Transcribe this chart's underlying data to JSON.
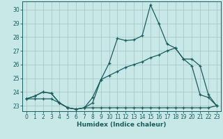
{
  "xlabel": "Humidex (Indice chaleur)",
  "xlim": [
    -0.5,
    23.5
  ],
  "ylim": [
    22.6,
    30.6
  ],
  "yticks": [
    23,
    24,
    25,
    26,
    27,
    28,
    29,
    30
  ],
  "xticks": [
    0,
    1,
    2,
    3,
    4,
    5,
    6,
    7,
    8,
    9,
    10,
    11,
    12,
    13,
    14,
    15,
    16,
    17,
    18,
    19,
    20,
    21,
    22,
    23
  ],
  "bg_color": "#c8e8e8",
  "grid_color": "#a8c8c8",
  "line_color": "#1a5c5c",
  "line1_x": [
    0,
    1,
    2,
    3,
    4,
    5,
    6,
    7,
    8,
    9,
    10,
    11,
    12,
    13,
    14,
    15,
    16,
    17,
    18,
    19,
    20,
    21,
    22,
    23
  ],
  "line1_y": [
    23.5,
    23.7,
    24.0,
    23.9,
    23.2,
    22.85,
    22.75,
    22.85,
    23.2,
    24.9,
    26.1,
    27.9,
    27.75,
    27.8,
    28.1,
    30.35,
    29.0,
    27.5,
    27.2,
    26.4,
    25.9,
    23.8,
    23.6,
    23.0
  ],
  "line2_x": [
    0,
    1,
    2,
    3,
    4,
    5,
    6,
    7,
    8,
    9,
    10,
    11,
    12,
    13,
    14,
    15,
    16,
    17,
    18,
    19,
    20,
    21,
    22,
    23
  ],
  "line2_y": [
    23.5,
    23.7,
    24.0,
    23.9,
    23.2,
    22.85,
    22.75,
    22.85,
    23.6,
    24.9,
    25.2,
    25.5,
    25.8,
    26.0,
    26.2,
    26.5,
    26.7,
    27.0,
    27.2,
    26.4,
    26.4,
    25.9,
    23.8,
    23.0
  ],
  "line3_x": [
    0,
    1,
    2,
    3,
    4,
    5,
    6,
    7,
    8,
    9,
    10,
    11,
    12,
    13,
    14,
    15,
    16,
    17,
    18,
    19,
    20,
    21,
    22,
    23
  ],
  "line3_y": [
    23.5,
    23.5,
    23.5,
    23.5,
    23.2,
    22.85,
    22.75,
    22.85,
    22.85,
    22.85,
    22.85,
    22.85,
    22.85,
    22.85,
    22.85,
    22.85,
    22.85,
    22.85,
    22.85,
    22.85,
    22.85,
    22.85,
    22.85,
    23.0
  ]
}
